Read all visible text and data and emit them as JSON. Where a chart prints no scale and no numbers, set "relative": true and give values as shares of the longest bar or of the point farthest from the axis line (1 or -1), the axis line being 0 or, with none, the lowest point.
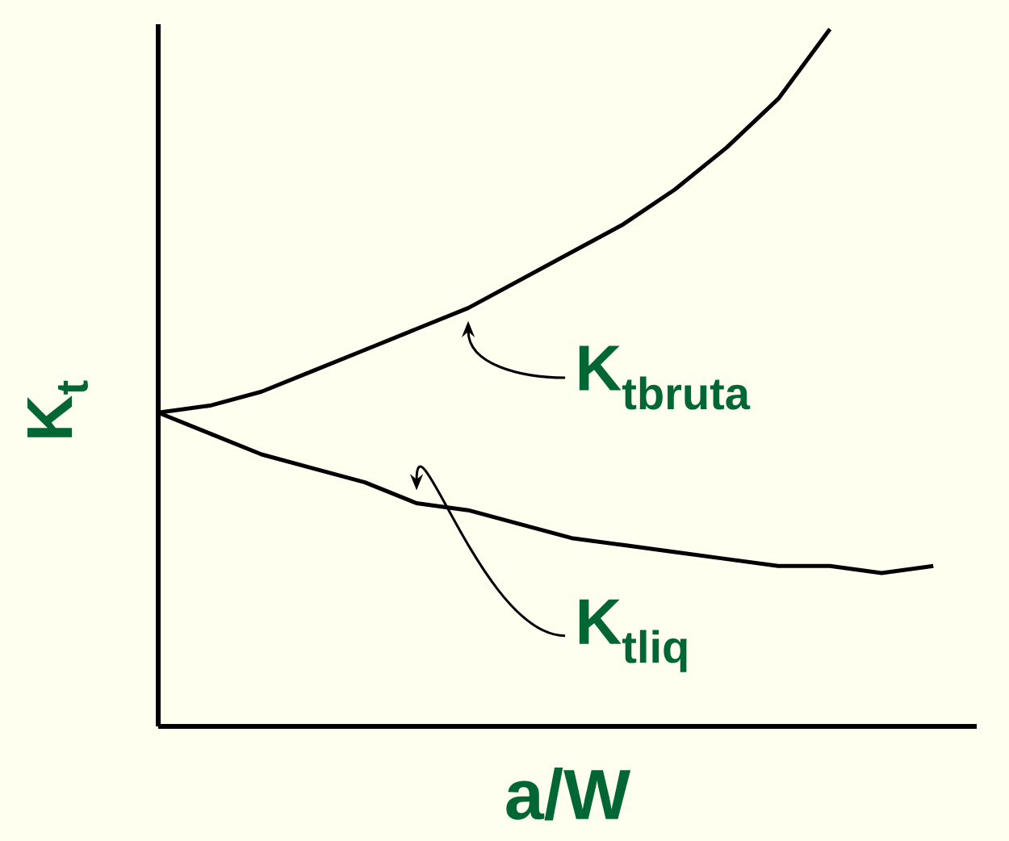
{
  "chart_data": {
    "type": "line",
    "relative": true,
    "xlabel": "a/W",
    "ylabel": "K$_{t}$",
    "tick_labels": false,
    "categories": [
      null,
      null,
      null,
      null,
      null,
      null,
      null,
      null,
      null,
      null,
      null,
      null,
      null,
      null,
      null,
      null
    ],
    "series": [
      {
        "name": "K$_{tbruta}$",
        "color": "#000000",
        "values": [
          0.45,
          0.46,
          0.48,
          0.51,
          0.54,
          0.57,
          0.6,
          0.64,
          0.68,
          0.72,
          0.77,
          0.83,
          0.9,
          1.0,
          null,
          null
        ]
      },
      {
        "name": "K$_{tliq}$",
        "color": "#000000",
        "values": [
          0.45,
          0.42,
          0.39,
          0.37,
          0.35,
          0.32,
          0.31,
          0.29,
          0.27,
          0.26,
          0.25,
          0.24,
          0.23,
          0.23,
          0.22,
          0.23
        ]
      }
    ]
  }
}
